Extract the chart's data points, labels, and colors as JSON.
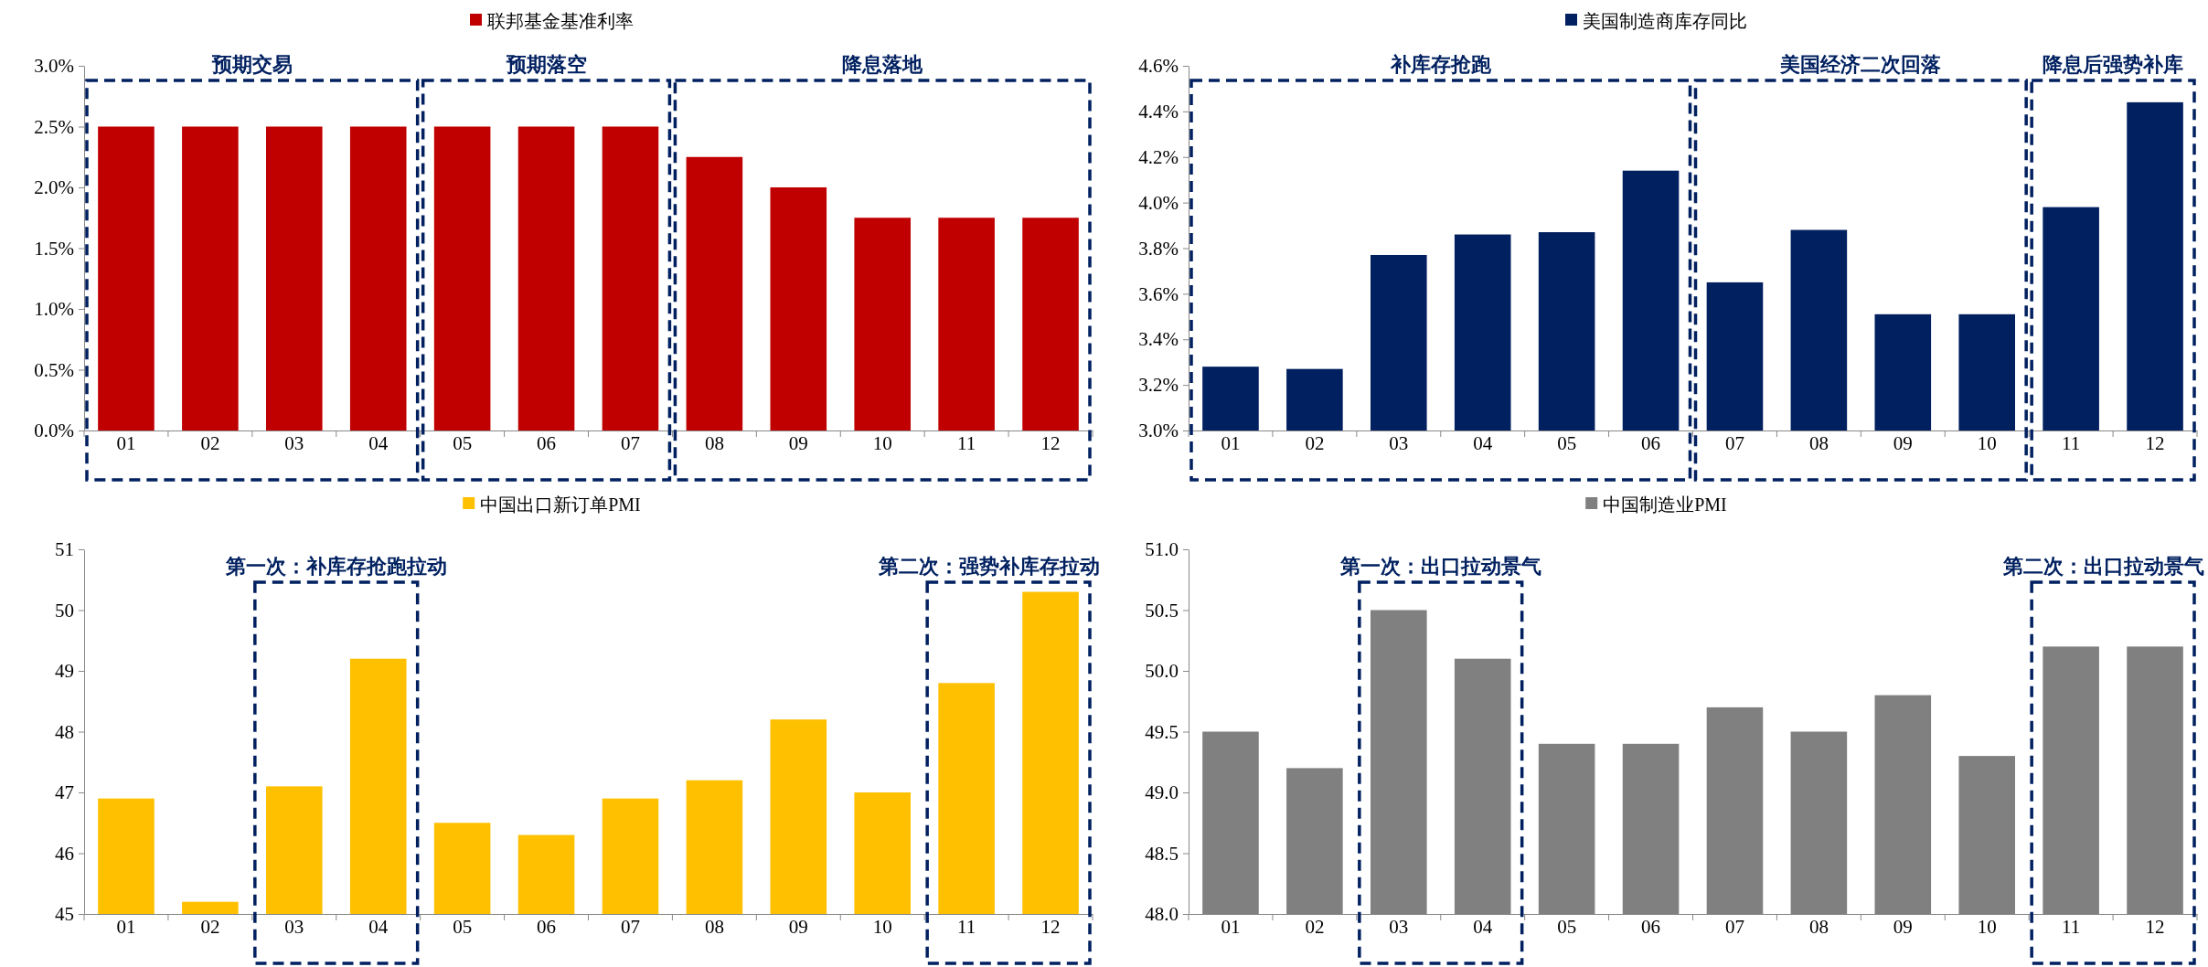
{
  "chart_data": [
    {
      "type": "bar",
      "categories": [
        "01",
        "02",
        "03",
        "04",
        "05",
        "06",
        "07",
        "08",
        "09",
        "10",
        "11",
        "12"
      ],
      "series": [
        {
          "name": "联邦基金基准利率",
          "color": "#c00000",
          "values": [
            2.5,
            2.5,
            2.5,
            2.5,
            2.5,
            2.5,
            2.5,
            2.25,
            2.0,
            1.75,
            1.75,
            1.75
          ]
        }
      ],
      "ylim": [
        0,
        3
      ],
      "yticks": [
        {
          "value": 0,
          "label": "0.0%"
        },
        {
          "value": 0.5,
          "label": "0.5%"
        },
        {
          "value": 1,
          "label": "1.0%"
        },
        {
          "value": 1.5,
          "label": "1.5%"
        },
        {
          "value": 2,
          "label": "2.0%"
        },
        {
          "value": 2.5,
          "label": "2.5%"
        },
        {
          "value": 3,
          "label": "3.0%"
        }
      ],
      "annotations": [
        "预期交易",
        "预期落空",
        "降息落地"
      ],
      "legend": "top",
      "grid": false
    },
    {
      "type": "bar",
      "categories": [
        "01",
        "02",
        "03",
        "04",
        "05",
        "06",
        "07",
        "08",
        "09",
        "10",
        "11",
        "12"
      ],
      "series": [
        {
          "name": "美国制造商库存同比",
          "color": "#002060",
          "values": [
            3.28,
            3.27,
            3.77,
            3.86,
            3.87,
            4.14,
            3.65,
            3.88,
            3.51,
            3.51,
            3.98,
            4.44
          ]
        }
      ],
      "ylim": [
        3,
        4.6
      ],
      "yticks": [
        {
          "value": 3,
          "label": "3.0%"
        },
        {
          "value": 3.2,
          "label": "3.2%"
        },
        {
          "value": 3.4,
          "label": "3.4%"
        },
        {
          "value": 3.6,
          "label": "3.6%"
        },
        {
          "value": 3.8,
          "label": "3.8%"
        },
        {
          "value": 4,
          "label": "4.0%"
        },
        {
          "value": 4.2,
          "label": "4.2%"
        },
        {
          "value": 4.4,
          "label": "4.4%"
        },
        {
          "value": 4.6,
          "label": "4.6%"
        }
      ],
      "annotations": [
        "补库存抢跑",
        "美国经济二次回落",
        "降息后强势补库"
      ],
      "legend": "top",
      "grid": false
    },
    {
      "type": "bar",
      "categories": [
        "01",
        "02",
        "03",
        "04",
        "05",
        "06",
        "07",
        "08",
        "09",
        "10",
        "11",
        "12"
      ],
      "series": [
        {
          "name": "中国出口新订单PMI",
          "color": "#ffc000",
          "values": [
            46.9,
            45.2,
            47.1,
            49.2,
            46.5,
            46.3,
            46.9,
            47.2,
            48.2,
            47.0,
            48.8,
            50.3
          ]
        }
      ],
      "ylim": [
        45,
        51
      ],
      "yticks": [
        45,
        46,
        47,
        48,
        49,
        50,
        51
      ],
      "annotations": [
        "第一次：补库存抢跑拉动",
        "第二次：强势补库存拉动"
      ],
      "legend": "top",
      "grid": false
    },
    {
      "type": "bar",
      "categories": [
        "01",
        "02",
        "03",
        "04",
        "05",
        "06",
        "07",
        "08",
        "09",
        "10",
        "11",
        "12"
      ],
      "series": [
        {
          "name": "中国制造业PMI",
          "color": "#808080",
          "values": [
            49.5,
            49.2,
            50.5,
            50.1,
            49.4,
            49.4,
            49.7,
            49.5,
            49.8,
            49.3,
            50.2,
            50.2
          ]
        }
      ],
      "ylim": [
        48,
        51
      ],
      "yticks": [
        {
          "value": 48,
          "label": "48.0"
        },
        {
          "value": 48.5,
          "label": "48.5"
        },
        {
          "value": 49,
          "label": "49.0"
        },
        {
          "value": 49.5,
          "label": "49.5"
        },
        {
          "value": 50,
          "label": "50.0"
        },
        {
          "value": 50.5,
          "label": "50.5"
        },
        {
          "value": 51,
          "label": "51.0"
        }
      ],
      "annotations": [
        "第一次：出口拉动景气",
        "第二次：出口拉动景气"
      ],
      "legend": "top",
      "grid": false
    }
  ]
}
